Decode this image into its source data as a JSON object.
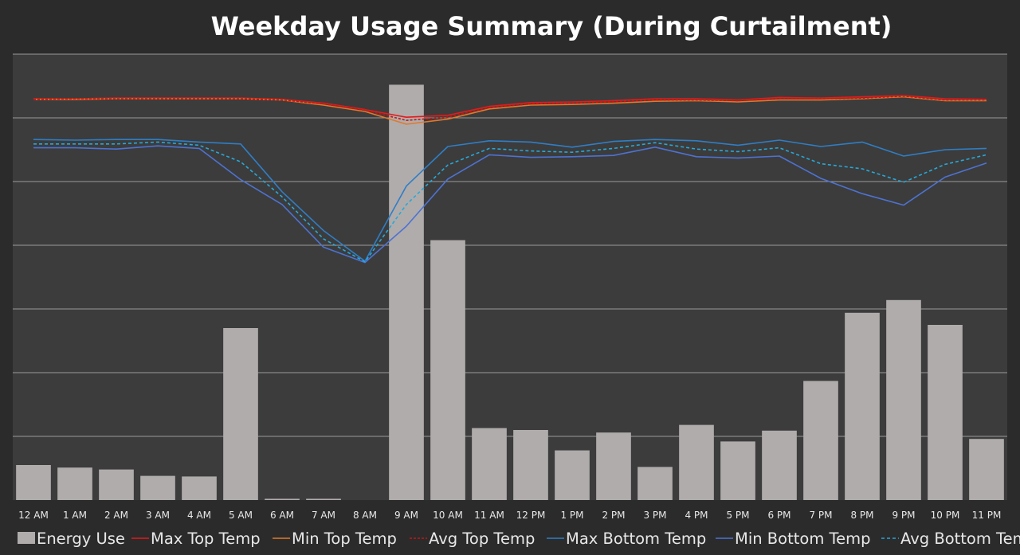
{
  "chart_data": {
    "type": "bar",
    "title": "Weekday Usage Summary (During Curtailment)",
    "xlabel": "",
    "ylabel": "",
    "categories": [
      "12 AM",
      "1 AM",
      "2 AM",
      "3 AM",
      "4 AM",
      "5 AM",
      "6 AM",
      "7 AM",
      "8 AM",
      "9 AM",
      "10 AM",
      "11 AM",
      "12 PM",
      "1 PM",
      "2 PM",
      "3 PM",
      "4 PM",
      "5 PM",
      "6 PM",
      "7 PM",
      "8 PM",
      "9 PM",
      "10 PM",
      "11 PM"
    ],
    "grid": true,
    "legend_position": "bottom",
    "axes": {
      "left_ylim": [
        0,
        7
      ],
      "right_ylim": [
        0,
        7
      ]
    },
    "series": [
      {
        "name": "Energy Use",
        "type": "bar",
        "axis": "left",
        "color": "#b0acac",
        "values": [
          0.55,
          0.51,
          0.48,
          0.38,
          0.37,
          2.7,
          0.02,
          0.02,
          0,
          6.52,
          4.08,
          1.13,
          1.1,
          0.78,
          1.06,
          0.52,
          1.18,
          0.92,
          1.09,
          1.87,
          2.94,
          3.14,
          2.75,
          0.96
        ]
      },
      {
        "name": "Max Top Temp",
        "type": "line",
        "axis": "right",
        "color": "#e31b1b",
        "dash": "solid",
        "values": [
          6.3,
          6.3,
          6.31,
          6.31,
          6.31,
          6.31,
          6.29,
          6.23,
          6.13,
          6.01,
          6.04,
          6.18,
          6.24,
          6.25,
          6.27,
          6.3,
          6.3,
          6.28,
          6.32,
          6.31,
          6.33,
          6.35,
          6.3,
          6.29
        ]
      },
      {
        "name": "Min Top Temp",
        "type": "line",
        "axis": "right",
        "color": "#e07a2c",
        "dash": "solid",
        "values": [
          6.29,
          6.29,
          6.3,
          6.3,
          6.3,
          6.3,
          6.28,
          6.2,
          6.1,
          5.9,
          5.98,
          6.14,
          6.2,
          6.21,
          6.23,
          6.26,
          6.27,
          6.25,
          6.28,
          6.28,
          6.3,
          6.33,
          6.27,
          6.27
        ]
      },
      {
        "name": "Avg Top Temp",
        "type": "line",
        "axis": "right",
        "color": "#c41616",
        "dash": "dotted",
        "values": [
          6.29,
          6.3,
          6.3,
          6.3,
          6.3,
          6.3,
          6.28,
          6.22,
          6.12,
          5.96,
          6.01,
          6.16,
          6.22,
          6.23,
          6.25,
          6.28,
          6.28,
          6.27,
          6.3,
          6.3,
          6.31,
          6.34,
          6.28,
          6.28
        ]
      },
      {
        "name": "Max Bottom Temp",
        "type": "line",
        "axis": "right",
        "color": "#2f7ec6",
        "dash": "solid",
        "values": [
          5.66,
          5.65,
          5.66,
          5.66,
          5.62,
          5.59,
          4.84,
          4.23,
          3.75,
          4.93,
          5.55,
          5.64,
          5.62,
          5.54,
          5.63,
          5.66,
          5.64,
          5.57,
          5.65,
          5.55,
          5.62,
          5.4,
          5.5,
          5.52
        ]
      },
      {
        "name": "Min Bottom Temp",
        "type": "line",
        "axis": "right",
        "color": "#4d72d2",
        "dash": "solid",
        "values": [
          5.53,
          5.53,
          5.51,
          5.56,
          5.52,
          5.03,
          4.64,
          3.97,
          3.73,
          4.3,
          5.04,
          5.42,
          5.38,
          5.39,
          5.41,
          5.54,
          5.39,
          5.37,
          5.4,
          5.05,
          4.81,
          4.63,
          5.07,
          5.29
        ]
      },
      {
        "name": "Avg Bottom Temp",
        "type": "line",
        "axis": "right",
        "color": "#28a8d8",
        "dash": "dashed",
        "values": [
          5.59,
          5.59,
          5.59,
          5.62,
          5.57,
          5.31,
          4.76,
          4.1,
          3.74,
          4.64,
          5.26,
          5.52,
          5.48,
          5.46,
          5.52,
          5.61,
          5.51,
          5.47,
          5.53,
          5.28,
          5.2,
          4.99,
          5.27,
          5.42
        ]
      }
    ]
  }
}
